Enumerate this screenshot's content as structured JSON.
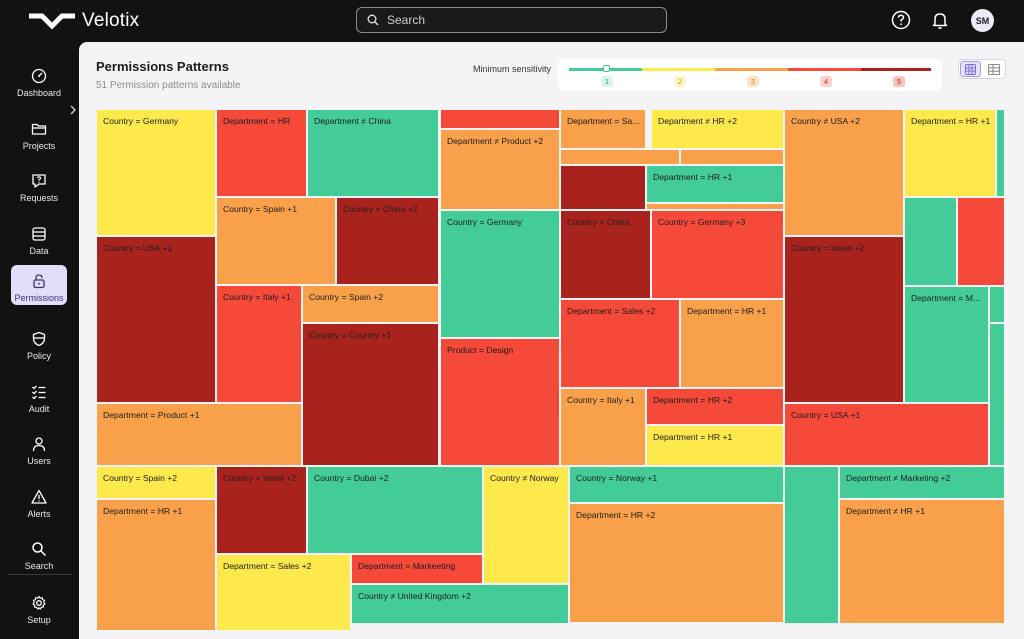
{
  "app": {
    "name": "Velotix"
  },
  "search": {
    "placeholder": "Search"
  },
  "user": {
    "initials": "SM"
  },
  "nav": [
    {
      "label": "Dashboard",
      "icon": "dashboard-gauge-icon"
    },
    {
      "label": "Projects",
      "icon": "folder-icon"
    },
    {
      "label": "Requests",
      "icon": "request-icon"
    },
    {
      "label": "Data",
      "icon": "database-icon"
    },
    {
      "label": "Permissions",
      "icon": "lock-icon",
      "active": true
    },
    {
      "label": "Policy",
      "icon": "shield-icon"
    },
    {
      "label": "Audit",
      "icon": "checklist-icon"
    },
    {
      "label": "Users",
      "icon": "user-icon"
    },
    {
      "label": "Alerts",
      "icon": "alert-triangle-icon"
    },
    {
      "label": "Search",
      "icon": "search-icon"
    },
    {
      "label": "Setup",
      "icon": "gear-icon"
    }
  ],
  "page": {
    "title": "Permissions Patterns",
    "subtitle": "51 Permission patterns available"
  },
  "sensitivity": {
    "label": "Minimum sensitivity",
    "selected": 1,
    "levels": [
      {
        "value": "1",
        "color": "#43cc97",
        "bg": "#d9f5ea",
        "fg": "#21a070"
      },
      {
        "value": "2",
        "color": "#fde94c",
        "bg": "#fdf6c8",
        "fg": "#b3a31a"
      },
      {
        "value": "3",
        "color": "#f8a04a",
        "bg": "#fde3c6",
        "fg": "#d07822"
      },
      {
        "value": "4",
        "color": "#f5493a",
        "bg": "#fdd0cb",
        "fg": "#d0342a"
      },
      {
        "value": "5",
        "color": "#a8231d",
        "bg": "#f7c3bf",
        "fg": "#a8231d"
      }
    ]
  },
  "view_toggle": {
    "selected": "grid",
    "grid_icon": "grid-view-icon",
    "list_icon": "list-view-icon"
  },
  "colors": {
    "level1": "#43cc97",
    "level2": "#fde94c",
    "level3": "#f8a04a",
    "level4": "#f5493a",
    "level5": "#a8231d"
  },
  "patterns": [
    {
      "label": "Country = Germany",
      "level": 2
    },
    {
      "label": "Department = HR",
      "level": 4
    },
    {
      "label": "Department ≠ China",
      "level": 1
    },
    {
      "label": "",
      "level": 4
    },
    {
      "label": "Department ≠ Product +2",
      "level": 3
    },
    {
      "label": "Department = Sa...",
      "level": 3
    },
    {
      "label": "Department ≠ HR +2",
      "level": 2
    },
    {
      "label": "",
      "level": 3
    },
    {
      "label": "",
      "level": 3
    },
    {
      "label": "",
      "level": 5
    },
    {
      "label": "Department = HR +1",
      "level": 1
    },
    {
      "label": "",
      "level": 3
    },
    {
      "label": "Country ≠ USA +2",
      "level": 3
    },
    {
      "label": "Department = HR +1",
      "level": 2
    },
    {
      "label": "",
      "level": 1
    },
    {
      "label": "Country = Spain +1",
      "level": 3
    },
    {
      "label": "Country = China +2",
      "level": 5
    },
    {
      "label": "Country = USA +1",
      "level": 5
    },
    {
      "label": "Country = Germany",
      "level": 1
    },
    {
      "label": "Country = China",
      "level": 5
    },
    {
      "label": "Country = Germany +3",
      "level": 4
    },
    {
      "label": "",
      "level": 1
    },
    {
      "label": "",
      "level": 4
    },
    {
      "label": "Country = Israel +2",
      "level": 5
    },
    {
      "label": "Country = Italy +1",
      "level": 4
    },
    {
      "label": "Country = Spain +2",
      "level": 3
    },
    {
      "label": "Department = M...",
      "level": 1
    },
    {
      "label": "",
      "level": 1
    },
    {
      "label": "",
      "level": 1
    },
    {
      "label": "Country = Country +1",
      "level": 5
    },
    {
      "label": "Department = Sales +2",
      "level": 4
    },
    {
      "label": "Department = HR +1",
      "level": 3
    },
    {
      "label": "Product = Design",
      "level": 4
    },
    {
      "label": "Country = Italy +1",
      "level": 3
    },
    {
      "label": "Department = HR +2",
      "level": 4
    },
    {
      "label": "Department = HR +1",
      "level": 2
    },
    {
      "label": "Department = Product +1",
      "level": 3
    },
    {
      "label": "Country = USA +1",
      "level": 4
    },
    {
      "label": "Country = Spain +2",
      "level": 2
    },
    {
      "label": "Department = HR +1",
      "level": 3
    },
    {
      "label": "Country = Israel +2",
      "level": 5
    },
    {
      "label": "Country = Dubai +2",
      "level": 1
    },
    {
      "label": "Country ≠ Norway",
      "level": 2
    },
    {
      "label": "Country = Norway +1",
      "level": 1
    },
    {
      "label": "Department = HR +2",
      "level": 3
    },
    {
      "label": "",
      "level": 1
    },
    {
      "label": "Department ≠ Marketing +2",
      "level": 1
    },
    {
      "label": "Department ≠ HR +1",
      "level": 3
    },
    {
      "label": "Department = Sales +2",
      "level": 2
    },
    {
      "label": "Department = Markeeting",
      "level": 4
    },
    {
      "label": "Country ≠ United Kingdom +2",
      "level": 1
    }
  ]
}
